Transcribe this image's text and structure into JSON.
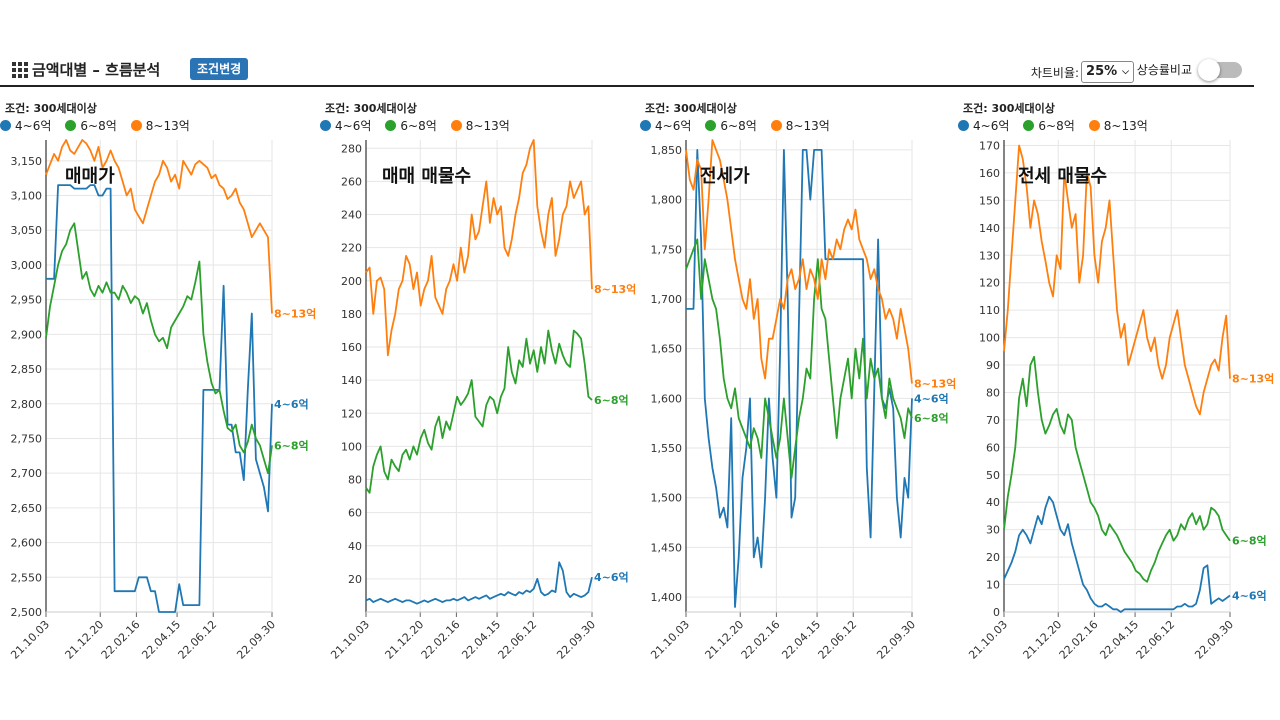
{
  "header": {
    "title": "금액대별 – 흐름분석",
    "condition_button": "조건변경",
    "chart_ratio_label": "차트비율:",
    "chart_ratio_value": "25%",
    "compare_label": "상승률비교",
    "compare_enabled": false
  },
  "colors": {
    "4~6억": "#1f77b4",
    "6~8억": "#2ca02c",
    "8~13억": "#ff7f0e",
    "accent": "#2a73b5"
  },
  "chart_data": [
    {
      "type": "line",
      "title": "매매가",
      "condition": "조건: 300세대이상",
      "legend": [
        "4~6억",
        "6~8억",
        "8~13억"
      ],
      "x_ticks": [
        "21.10.03",
        "21.12.20",
        "22.02.16",
        "22.04.15",
        "22.06.12",
        "22.09.30"
      ],
      "ylim": [
        2500,
        3180
      ],
      "y_ticks": [
        "2,500",
        "2,550",
        "2,600",
        "2,650",
        "2,700",
        "2,750",
        "2,800",
        "2,850",
        "2,900",
        "2,950",
        "3,000",
        "3,050",
        "3,100",
        "3,150"
      ],
      "series": [
        {
          "name": "4~6억",
          "end_label": "4~6억",
          "values": [
            2980,
            2980,
            2980,
            3115,
            3115,
            3115,
            3115,
            3110,
            3110,
            3110,
            3110,
            3115,
            3115,
            3100,
            3100,
            3110,
            3110,
            2530,
            2530,
            2530,
            2530,
            2530,
            2530,
            2550,
            2550,
            2550,
            2530,
            2530,
            2500,
            2500,
            2500,
            2500,
            2500,
            2540,
            2510,
            2510,
            2510,
            2510,
            2510,
            2820,
            2820,
            2820,
            2820,
            2820,
            2970,
            2770,
            2770,
            2730,
            2730,
            2690,
            2820,
            2930,
            2720,
            2700,
            2680,
            2645,
            2800
          ]
        },
        {
          "name": "6~8억",
          "end_label": "6~8억",
          "values": [
            2895,
            2940,
            2970,
            3000,
            3020,
            3030,
            3050,
            3060,
            3020,
            2980,
            2990,
            2965,
            2955,
            2970,
            2960,
            2975,
            2960,
            2960,
            2950,
            2970,
            2960,
            2945,
            2955,
            2950,
            2930,
            2945,
            2920,
            2900,
            2890,
            2895,
            2880,
            2910,
            2920,
            2930,
            2940,
            2955,
            2950,
            2975,
            3005,
            2900,
            2860,
            2830,
            2815,
            2820,
            2790,
            2765,
            2760,
            2770,
            2740,
            2730,
            2745,
            2770,
            2750,
            2740,
            2720,
            2700,
            2740
          ]
        },
        {
          "name": "8~13억",
          "end_label": "8~13억",
          "values": [
            3130,
            3145,
            3160,
            3150,
            3170,
            3180,
            3165,
            3160,
            3170,
            3180,
            3175,
            3165,
            3150,
            3170,
            3140,
            3150,
            3165,
            3150,
            3140,
            3120,
            3100,
            3110,
            3080,
            3070,
            3060,
            3080,
            3100,
            3120,
            3130,
            3150,
            3140,
            3120,
            3130,
            3110,
            3150,
            3140,
            3130,
            3145,
            3150,
            3145,
            3140,
            3125,
            3130,
            3115,
            3110,
            3095,
            3100,
            3110,
            3090,
            3080,
            3060,
            3040,
            3050,
            3060,
            3050,
            3040,
            2930
          ]
        }
      ]
    },
    {
      "type": "line",
      "title": "매매 매물수",
      "condition": "조건: 300세대이상",
      "legend": [
        "4~6억",
        "6~8억",
        "8~13억"
      ],
      "x_ticks": [
        "21.10.03",
        "21.12.20",
        "22.02.16",
        "22.04.15",
        "22.06.12",
        "22.09.30"
      ],
      "ylim": [
        0,
        285
      ],
      "y_ticks": [
        "20",
        "40",
        "60",
        "80",
        "100",
        "120",
        "140",
        "160",
        "180",
        "200",
        "220",
        "240",
        "260",
        "280"
      ],
      "series": [
        {
          "name": "4~6억",
          "end_label": "4~6억",
          "values": [
            7,
            8,
            6,
            7,
            8,
            7,
            6,
            7,
            8,
            7,
            6,
            7,
            7,
            6,
            5,
            6,
            7,
            6,
            7,
            8,
            7,
            6,
            7,
            7,
            8,
            7,
            8,
            9,
            7,
            8,
            9,
            8,
            9,
            10,
            8,
            9,
            10,
            11,
            10,
            12,
            11,
            10,
            12,
            11,
            13,
            12,
            14,
            20,
            12,
            10,
            11,
            13,
            12,
            30,
            25,
            12,
            9,
            11,
            10,
            9,
            10,
            12,
            21
          ]
        },
        {
          "name": "6~8억",
          "end_label": "6~8억",
          "values": [
            75,
            72,
            88,
            95,
            100,
            85,
            80,
            92,
            88,
            85,
            95,
            98,
            92,
            100,
            95,
            105,
            110,
            102,
            98,
            112,
            118,
            105,
            115,
            110,
            120,
            130,
            125,
            128,
            132,
            140,
            118,
            115,
            112,
            125,
            130,
            128,
            120,
            130,
            135,
            160,
            145,
            138,
            152,
            148,
            165,
            150,
            158,
            145,
            160,
            150,
            170,
            158,
            150,
            162,
            155,
            150,
            148,
            170,
            168,
            165,
            150,
            130,
            128
          ]
        },
        {
          "name": "8~13억",
          "end_label": "8~13억",
          "values": [
            205,
            208,
            180,
            200,
            202,
            195,
            155,
            170,
            180,
            195,
            200,
            215,
            210,
            195,
            205,
            185,
            195,
            200,
            215,
            190,
            185,
            180,
            195,
            200,
            210,
            200,
            220,
            205,
            215,
            240,
            225,
            230,
            245,
            260,
            235,
            250,
            240,
            245,
            220,
            215,
            225,
            240,
            250,
            265,
            270,
            280,
            285,
            245,
            230,
            220,
            240,
            250,
            215,
            225,
            240,
            245,
            260,
            250,
            255,
            260,
            240,
            245,
            195
          ]
        }
      ]
    },
    {
      "type": "line",
      "title": "전세가",
      "condition": "조건: 300세대이상",
      "legend": [
        "4~6억",
        "6~8억",
        "8~13억"
      ],
      "x_ticks": [
        "21.10.03",
        "21.12.20",
        "22.02.16",
        "22.04.15",
        "22.06.12",
        "22.09.30"
      ],
      "ylim": [
        1385,
        1860
      ],
      "y_ticks": [
        "1,400",
        "1,450",
        "1,500",
        "1,550",
        "1,600",
        "1,650",
        "1,700",
        "1,750",
        "1,800",
        "1,850"
      ],
      "series": [
        {
          "name": "4~6억",
          "end_label": "4~6억",
          "values": [
            1690,
            1690,
            1690,
            1850,
            1760,
            1600,
            1560,
            1530,
            1510,
            1480,
            1490,
            1470,
            1580,
            1390,
            1440,
            1520,
            1550,
            1600,
            1440,
            1460,
            1430,
            1500,
            1600,
            1540,
            1500,
            1650,
            1850,
            1700,
            1480,
            1500,
            1680,
            1850,
            1850,
            1800,
            1850,
            1850,
            1850,
            1740,
            1740,
            1740,
            1740,
            1740,
            1740,
            1740,
            1740,
            1740,
            1740,
            1740,
            1530,
            1460,
            1610,
            1760,
            1600,
            1590,
            1610,
            1590,
            1500,
            1460,
            1520,
            1500,
            1600
          ]
        },
        {
          "name": "6~8억",
          "end_label": "6~8억",
          "values": [
            1730,
            1740,
            1750,
            1760,
            1700,
            1740,
            1720,
            1700,
            1690,
            1660,
            1620,
            1600,
            1590,
            1610,
            1580,
            1570,
            1560,
            1550,
            1570,
            1560,
            1540,
            1600,
            1580,
            1560,
            1540,
            1560,
            1600,
            1560,
            1520,
            1550,
            1580,
            1600,
            1630,
            1620,
            1700,
            1740,
            1690,
            1680,
            1640,
            1600,
            1560,
            1600,
            1620,
            1640,
            1600,
            1650,
            1620,
            1660,
            1600,
            1640,
            1620,
            1630,
            1600,
            1580,
            1620,
            1600,
            1590,
            1580,
            1560,
            1590,
            1580
          ]
        },
        {
          "name": "8~13억",
          "end_label": "8~13억",
          "values": [
            1850,
            1820,
            1810,
            1840,
            1830,
            1750,
            1800,
            1860,
            1850,
            1840,
            1820,
            1800,
            1770,
            1740,
            1720,
            1700,
            1690,
            1720,
            1680,
            1700,
            1640,
            1620,
            1660,
            1660,
            1680,
            1700,
            1690,
            1720,
            1730,
            1710,
            1720,
            1740,
            1710,
            1730,
            1720,
            1700,
            1740,
            1720,
            1750,
            1740,
            1760,
            1750,
            1770,
            1780,
            1770,
            1790,
            1760,
            1750,
            1740,
            1720,
            1730,
            1710,
            1700,
            1680,
            1690,
            1680,
            1660,
            1690,
            1670,
            1650,
            1615
          ]
        }
      ]
    },
    {
      "type": "line",
      "title": "전세 매물수",
      "condition": "조건: 300세대이상",
      "legend": [
        "4~6억",
        "6~8억",
        "8~13억"
      ],
      "x_ticks": [
        "21.10.03",
        "21.12.20",
        "22.02.16",
        "22.04.15",
        "22.06.12",
        "22.09.30"
      ],
      "ylim": [
        0,
        172
      ],
      "y_ticks": [
        "0",
        "10",
        "20",
        "30",
        "40",
        "50",
        "60",
        "70",
        "80",
        "90",
        "100",
        "110",
        "120",
        "130",
        "140",
        "150",
        "160",
        "170"
      ],
      "series": [
        {
          "name": "4~6억",
          "end_label": "4~6억",
          "values": [
            12,
            15,
            18,
            22,
            28,
            30,
            28,
            25,
            30,
            35,
            32,
            38,
            42,
            40,
            35,
            30,
            28,
            32,
            25,
            20,
            15,
            10,
            8,
            5,
            3,
            2,
            2,
            3,
            2,
            1,
            1,
            0,
            1,
            1,
            1,
            1,
            1,
            1,
            1,
            1,
            1,
            1,
            1,
            1,
            1,
            1,
            2,
            2,
            3,
            2,
            2,
            3,
            8,
            16,
            17,
            3,
            4,
            5,
            4,
            5,
            6
          ]
        },
        {
          "name": "6~8억",
          "end_label": "6~8억",
          "values": [
            30,
            42,
            50,
            60,
            78,
            85,
            75,
            90,
            93,
            80,
            70,
            65,
            68,
            72,
            74,
            68,
            65,
            72,
            70,
            60,
            55,
            50,
            45,
            40,
            38,
            35,
            30,
            28,
            32,
            30,
            28,
            25,
            22,
            20,
            18,
            15,
            14,
            12,
            11,
            15,
            18,
            22,
            25,
            28,
            30,
            26,
            28,
            32,
            30,
            34,
            36,
            32,
            35,
            30,
            32,
            38,
            37,
            35,
            30,
            28,
            26
          ]
        },
        {
          "name": "8~13억",
          "end_label": "8~13억",
          "values": [
            95,
            110,
            130,
            150,
            170,
            165,
            155,
            140,
            150,
            145,
            135,
            128,
            120,
            115,
            130,
            125,
            160,
            150,
            140,
            145,
            120,
            130,
            160,
            155,
            130,
            120,
            135,
            140,
            150,
            130,
            110,
            100,
            105,
            90,
            95,
            100,
            105,
            110,
            100,
            95,
            100,
            90,
            85,
            90,
            100,
            105,
            110,
            100,
            90,
            85,
            80,
            75,
            72,
            80,
            85,
            90,
            92,
            88,
            100,
            108,
            85
          ]
        }
      ]
    }
  ]
}
